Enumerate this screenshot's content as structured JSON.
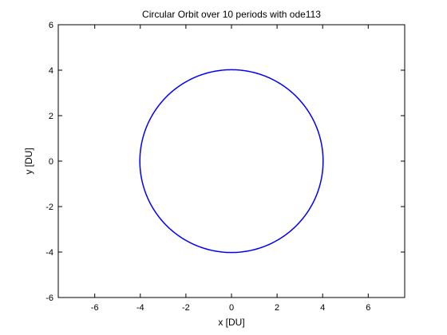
{
  "chart_data": {
    "type": "line",
    "title": "Circular Orbit over 10 periods with ode113",
    "xlabel": "x [DU]",
    "ylabel": "y [DU]",
    "xlim": [
      -7.6,
      7.6
    ],
    "ylim": [
      -6,
      6
    ],
    "xticks": [
      -6,
      -4,
      -2,
      0,
      2,
      4,
      6
    ],
    "yticks": [
      -6,
      -4,
      -2,
      0,
      2,
      4,
      6
    ],
    "xtick_labels": [
      "-6",
      "-4",
      "-2",
      "0",
      "2",
      "4",
      "6"
    ],
    "ytick_labels": [
      "-6",
      "-4",
      "-2",
      "0",
      "2",
      "4",
      "6"
    ],
    "grid": false,
    "series": [
      {
        "line_color": "#0000ff",
        "points": {
          "shape": "circle",
          "center": [
            0,
            0
          ],
          "radius": 4.02,
          "periods": 10
        }
      }
    ]
  }
}
